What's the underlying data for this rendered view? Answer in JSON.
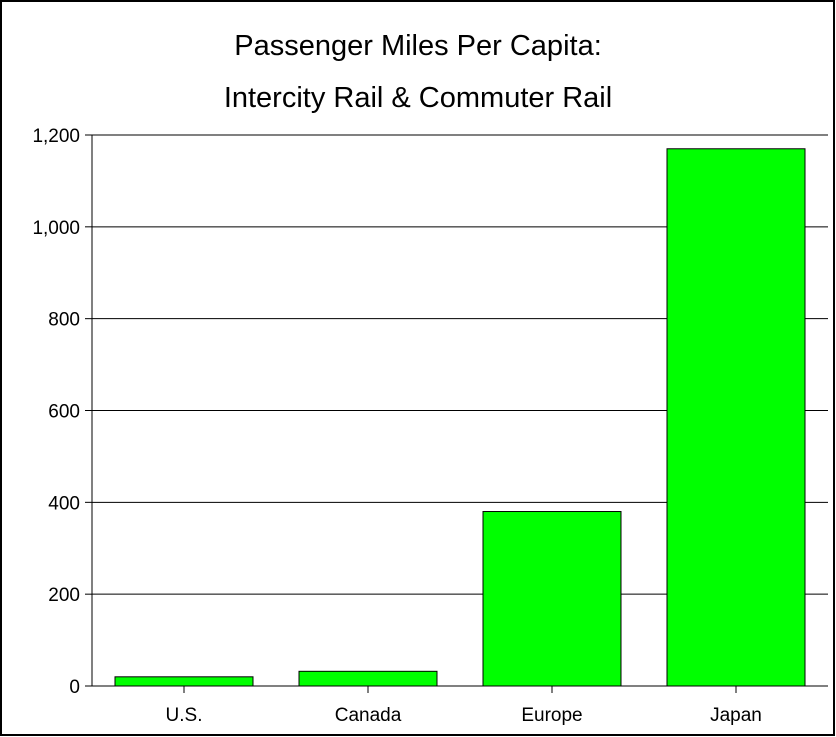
{
  "chart_data": {
    "type": "bar",
    "title": "Passenger Miles Per Capita:",
    "subtitle": "Intercity Rail & Commuter Rail",
    "xlabel": "",
    "ylabel": "",
    "categories": [
      "U.S.",
      "Canada",
      "Europe",
      "Japan"
    ],
    "values": [
      20,
      32,
      380,
      1170
    ],
    "ylim": [
      0,
      1200
    ],
    "yticks": [
      0,
      200,
      400,
      600,
      800,
      1000,
      1200
    ],
    "ytick_labels": [
      "0",
      "200",
      "400",
      "600",
      "800",
      "1,000",
      "1,200"
    ],
    "grid": true,
    "legend": "none",
    "bar_color": "#00ff00",
    "bar_stroke": "#000000"
  }
}
